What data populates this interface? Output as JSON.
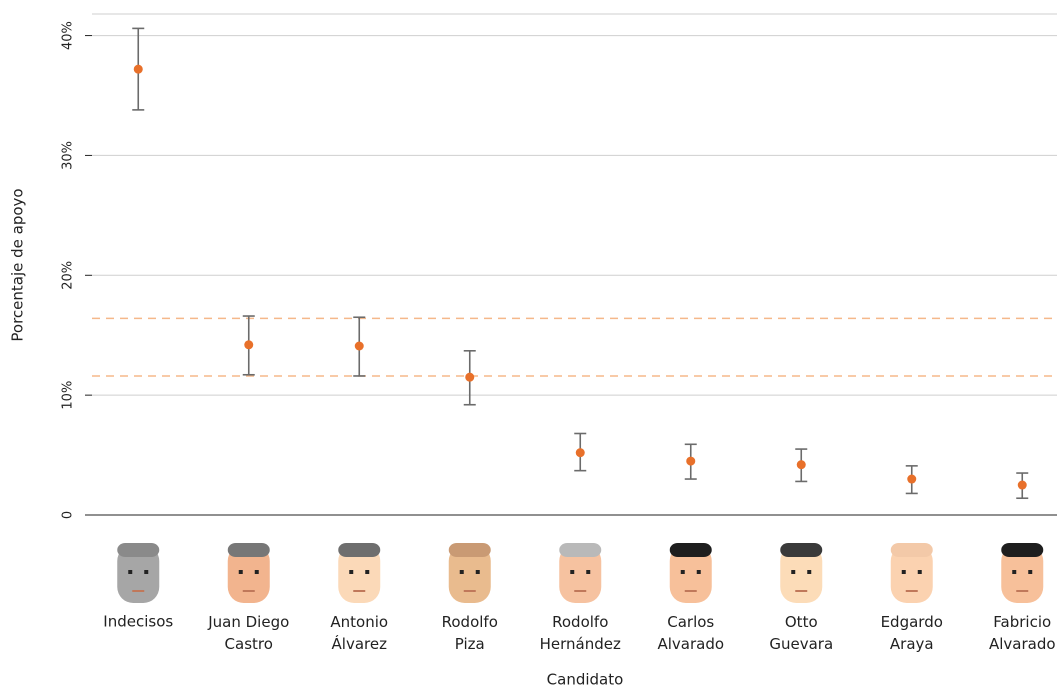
{
  "chart_data": {
    "type": "errorbar",
    "x_label": "Candidato",
    "y_label": "Porcentaje de apoyo",
    "categories": [
      "Indecisos",
      "Juan Diego Castro",
      "Antonio Álvarez",
      "Rodolfo Piza",
      "Rodolfo Hernández",
      "Carlos Alvarado",
      "Otto Guevara",
      "Edgardo Araya",
      "Fabricio Alvarado"
    ],
    "values": [
      37.2,
      14.2,
      14.1,
      11.5,
      5.2,
      4.5,
      4.2,
      3.0,
      2.5
    ],
    "lower": [
      33.8,
      11.7,
      11.6,
      9.2,
      3.7,
      3.0,
      2.8,
      1.8,
      1.4
    ],
    "upper": [
      40.6,
      16.6,
      16.5,
      13.7,
      6.8,
      5.9,
      5.5,
      4.1,
      3.5
    ],
    "color": "#e8702a",
    "error_color": "#6b6b6b",
    "reference_lines": [
      16.4,
      11.6
    ],
    "reference_color": "#f5b88a",
    "ylim": [
      0,
      41.8
    ],
    "yticks": [
      0,
      {
        "value": 10,
        "label": "10%"
      },
      {
        "value": 20,
        "label": "20%"
      },
      {
        "value": 30,
        "label": "30%"
      },
      {
        "value": 40,
        "label": "40%"
      }
    ],
    "grid": true
  }
}
